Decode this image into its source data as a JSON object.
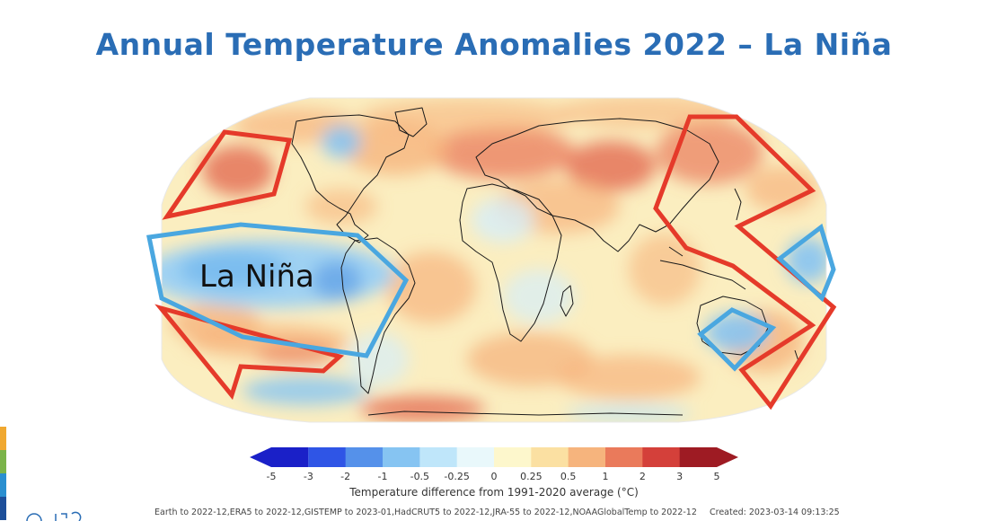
{
  "title": "Annual Temperature Anomalies 2022 – La Niña",
  "annotation": "La Niña",
  "colorbar": {
    "ticks": [
      "-5",
      "-3",
      "-2",
      "-1",
      "-0.5",
      "-0.25",
      "0",
      "0.25",
      "0.5",
      "1",
      "2",
      "3",
      "5"
    ],
    "colors": [
      "#1a20c8",
      "#2f55e6",
      "#5591ea",
      "#86c4f2",
      "#bfe6fa",
      "#e9f8fb",
      "#fdf7cc",
      "#fbe0a2",
      "#f6b47d",
      "#ea7a5b",
      "#d4403a",
      "#9e1b23"
    ],
    "label": "Temperature difference from 1991-2020 average (°C)"
  },
  "footer": {
    "sources": "Earth to 2022-12,ERA5 to 2022-12,GISTEMP to 2023-01,HadCRUT5 to 2022-12,JRA-55 to 2022-12,NOAAGlobalTemp to 2022-12",
    "created": "Created: 2023-03-14 09:13:25"
  },
  "brand_stripes": [
    "#f0a830",
    "#7bb44a",
    "#2a8fd0",
    "#1d4f9a"
  ],
  "map": {
    "ocean_base": "#fbeec0",
    "coastline": "#1a1a1a",
    "warm_outline": "#e53a2a",
    "cool_outline": "#4aa7e0"
  }
}
